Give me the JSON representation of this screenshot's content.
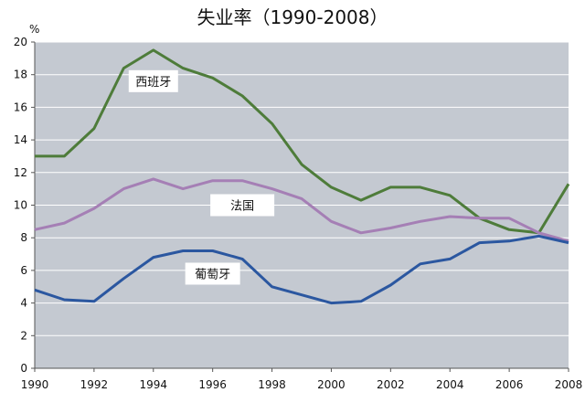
{
  "chart_data": {
    "type": "line",
    "title": "失业率（1990-2008）",
    "ylabel": "%",
    "xlabel": "",
    "ylim": [
      0,
      20
    ],
    "xlim": [
      1990,
      2008
    ],
    "yticks": [
      "0",
      "2",
      "4",
      "6",
      "8",
      "10",
      "12",
      "14",
      "16",
      "18",
      "20"
    ],
    "xticks": [
      "1990",
      "1992",
      "1994",
      "1996",
      "1998",
      "2000",
      "2002",
      "2004",
      "2006",
      "2008"
    ],
    "grid": true,
    "legend": "inline labels",
    "x": [
      1990,
      1991,
      1992,
      1993,
      1994,
      1995,
      1996,
      1997,
      1998,
      1999,
      2000,
      2001,
      2002,
      2003,
      2004,
      2005,
      2006,
      2007,
      2008
    ],
    "series": [
      {
        "name": "西班牙",
        "color": "#4e7c3a",
        "values": [
          13.0,
          13.0,
          14.7,
          18.4,
          19.5,
          18.4,
          17.8,
          16.7,
          15.0,
          12.5,
          11.1,
          10.3,
          11.1,
          11.1,
          10.6,
          9.2,
          8.5,
          8.3,
          11.3
        ]
      },
      {
        "name": "法国",
        "color": "#a57fb5",
        "values": [
          8.5,
          8.9,
          9.8,
          11.0,
          11.6,
          11.0,
          11.5,
          11.5,
          11.0,
          10.4,
          9.0,
          8.3,
          8.6,
          9.0,
          9.3,
          9.2,
          9.2,
          8.3,
          7.8
        ]
      },
      {
        "name": "葡萄牙",
        "color": "#2b57a0",
        "values": [
          4.8,
          4.2,
          4.1,
          5.5,
          6.8,
          7.2,
          7.2,
          6.7,
          5.0,
          4.5,
          4.0,
          4.1,
          5.1,
          6.4,
          6.7,
          7.7,
          7.8,
          8.1,
          7.7
        ]
      }
    ]
  },
  "style": {
    "plot_bg": "#c4c9d1",
    "grid_color": "#ffffff",
    "axis_color": "#555555",
    "label_box_bg": "#ffffff"
  }
}
